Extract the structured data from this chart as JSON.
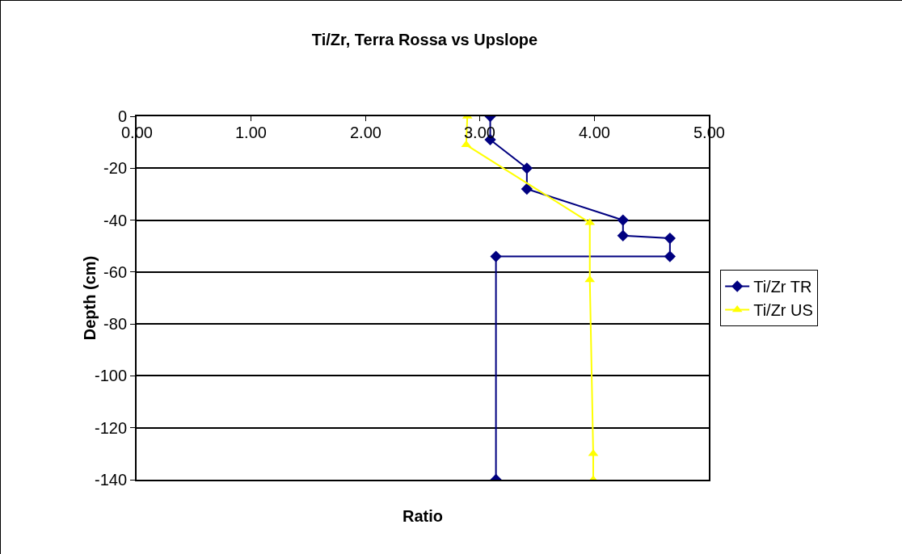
{
  "chart_data": {
    "type": "line",
    "title": "Ti/Zr, Terra Rossa vs Upslope",
    "xlabel": "Ratio",
    "ylabel": "Depth (cm)",
    "series": [
      {
        "name": "Ti/Zr TR",
        "color": "#000080",
        "marker": "diamond",
        "x": [
          3.09,
          3.09,
          3.41,
          3.41,
          4.25,
          4.25,
          4.66,
          4.66,
          3.14,
          3.14
        ],
        "values": [
          0,
          -9,
          -20,
          -28,
          -40,
          -46,
          -47,
          -54,
          -54,
          -140
        ]
      },
      {
        "name": "Ti/Zr US",
        "color": "#ffff00",
        "marker": "triangle",
        "x": [
          2.89,
          2.88,
          3.96,
          3.96,
          3.99,
          3.99
        ],
        "values": [
          0,
          -11,
          -41,
          -63,
          -130,
          -140
        ]
      }
    ],
    "xlim": [
      0,
      5
    ],
    "xticks": [
      {
        "value": 0,
        "label": "0.00"
      },
      {
        "value": 1,
        "label": "1.00"
      },
      {
        "value": 2,
        "label": "2.00"
      },
      {
        "value": 3,
        "label": "3.00"
      },
      {
        "value": 4,
        "label": "4.00"
      },
      {
        "value": 5,
        "label": "5.00"
      }
    ],
    "ylim": [
      -140,
      0
    ],
    "yticks": [
      -140,
      -120,
      -100,
      -80,
      -60,
      -40,
      -20,
      0
    ],
    "grid": "y",
    "legend": "right"
  }
}
